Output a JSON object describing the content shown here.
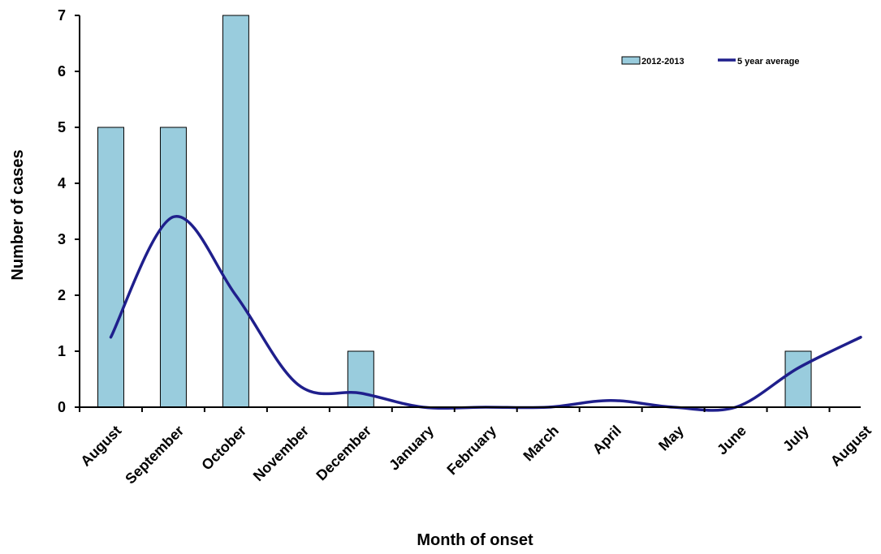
{
  "chart_data": {
    "type": "bar",
    "title": "",
    "xlabel": "Month of onset",
    "ylabel": "Number of cases",
    "ylim": [
      0,
      7
    ],
    "yticks": [
      0,
      1,
      2,
      3,
      4,
      5,
      6,
      7
    ],
    "categories": [
      "August",
      "September",
      "October",
      "November",
      "December",
      "January",
      "February",
      "March",
      "April",
      "May",
      "June",
      "July",
      "August"
    ],
    "legend_position": "top-right",
    "grid": false,
    "series": [
      {
        "name": "2012-2013",
        "kind": "bar",
        "color": "#99ccdd",
        "values": [
          5,
          5,
          7,
          0,
          1,
          0,
          0,
          0,
          0,
          0,
          0,
          1,
          null
        ]
      },
      {
        "name": "5 year average",
        "kind": "line",
        "smooth": true,
        "color": "#1f1f8c",
        "values": [
          1.25,
          3.4,
          2.0,
          0.4,
          0.25,
          0.0,
          0.0,
          0.0,
          0.12,
          0.0,
          0.0,
          0.7,
          1.25
        ]
      }
    ]
  }
}
